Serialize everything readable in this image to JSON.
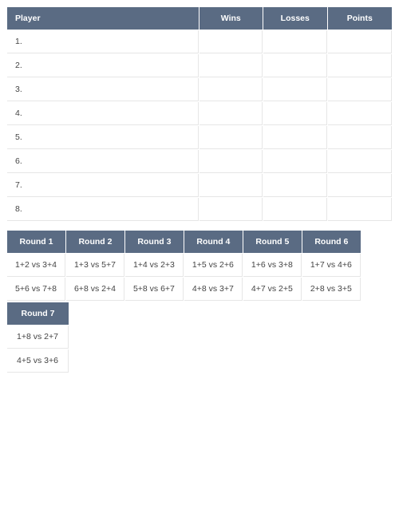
{
  "colors": {
    "header_bg": "#5a6b83",
    "header_text": "#ffffff",
    "cell_border": "#e6e6e6",
    "cell_bg": "#ffffff",
    "page_bg": "#ffffff",
    "text": "#333333"
  },
  "playerTable": {
    "columns": [
      "Player",
      "Wins",
      "Losses",
      "Points"
    ],
    "col_widths_pct": [
      50,
      16.6,
      16.6,
      16.8
    ],
    "rows": [
      {
        "num": "1.",
        "wins": "",
        "losses": "",
        "points": ""
      },
      {
        "num": "2.",
        "wins": "",
        "losses": "",
        "points": ""
      },
      {
        "num": "3.",
        "wins": "",
        "losses": "",
        "points": ""
      },
      {
        "num": "4.",
        "wins": "",
        "losses": "",
        "points": ""
      },
      {
        "num": "5.",
        "wins": "",
        "losses": "",
        "points": ""
      },
      {
        "num": "6.",
        "wins": "",
        "losses": "",
        "points": ""
      },
      {
        "num": "7.",
        "wins": "",
        "losses": "",
        "points": ""
      },
      {
        "num": "8.",
        "wins": "",
        "losses": "",
        "points": ""
      }
    ]
  },
  "roundsMain": {
    "columns": [
      "Round 1",
      "Round 2",
      "Round 3",
      "Round 4",
      "Round 5",
      "Round 6"
    ],
    "rows": [
      [
        "1+2 vs 3+4",
        "1+3 vs 5+7",
        "1+4 vs 2+3",
        "1+5 vs 2+6",
        "1+6 vs 3+8",
        "1+7 vs 4+6"
      ],
      [
        "5+6 vs 7+8",
        "6+8 vs 2+4",
        "5+8 vs 6+7",
        "4+8 vs 3+7",
        "4+7 vs 2+5",
        "2+8 vs 3+5"
      ]
    ]
  },
  "roundsExtra": {
    "columns": [
      "Round 7"
    ],
    "rows": [
      [
        "1+8 vs 2+7"
      ],
      [
        "4+5 vs 3+6"
      ]
    ]
  }
}
